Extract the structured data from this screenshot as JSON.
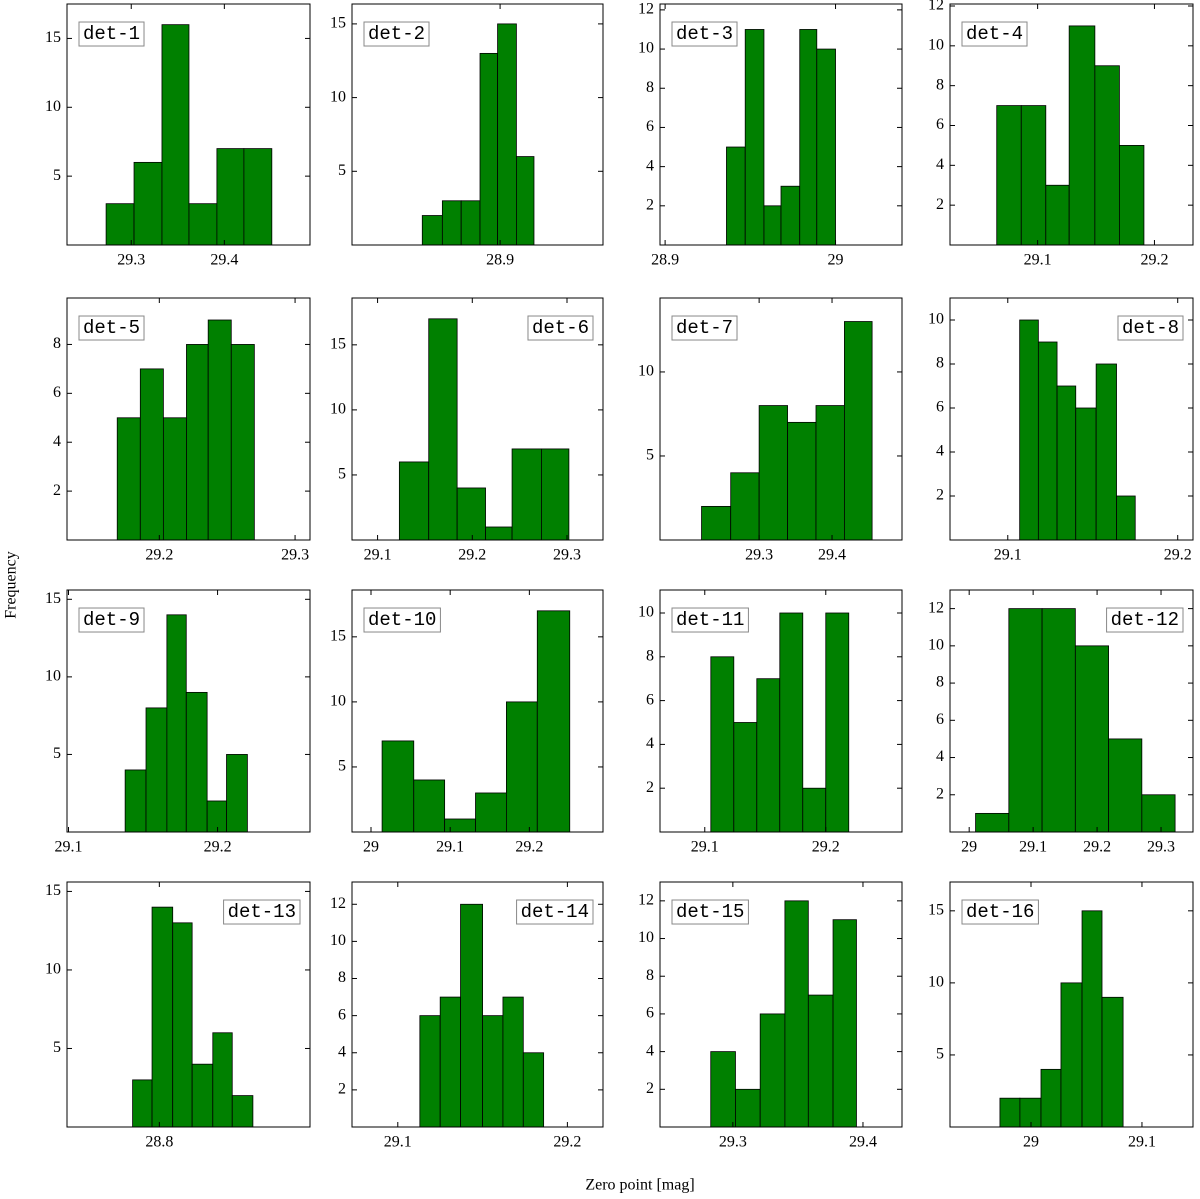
{
  "xlabel": "Zero point [mag]",
  "ylabel": "Frequency",
  "chart_data": [
    {
      "type": "histogram",
      "label": "det-1",
      "label_loc": "upper left",
      "color": "#008000",
      "bins": [
        29.273,
        29.303,
        29.333,
        29.362,
        29.392,
        29.421,
        29.451
      ],
      "counts": [
        3,
        6,
        16,
        3,
        7,
        7
      ],
      "xlim": [
        29.231,
        29.492
      ],
      "ylim": [
        0,
        17.5
      ],
      "xticks": [
        29.3,
        29.4
      ],
      "yticks": [
        5,
        10,
        15
      ]
    },
    {
      "type": "histogram",
      "label": "det-5",
      "label_loc": "upper left",
      "color": "#008000",
      "bins": [
        29.169,
        29.186,
        29.203,
        29.22,
        29.236,
        29.253,
        29.27
      ],
      "counts": [
        5,
        7,
        5,
        8,
        9,
        8
      ],
      "xlim": [
        29.132,
        29.311
      ],
      "ylim": [
        0,
        9.9
      ],
      "xticks": [
        29.2,
        29.3
      ],
      "yticks": [
        2,
        4,
        6,
        8
      ]
    },
    {
      "type": "histogram",
      "label": "det-9",
      "label_loc": "upper left",
      "color": "#008000",
      "bins": [
        29.138,
        29.152,
        29.166,
        29.179,
        29.193,
        29.206,
        29.22
      ],
      "counts": [
        4,
        8,
        14,
        9,
        2,
        5
      ],
      "xlim": [
        29.099,
        29.262
      ],
      "ylim": [
        0,
        15.6
      ],
      "xticks": [
        29.1,
        29.2
      ],
      "yticks": [
        5,
        10,
        15
      ]
    },
    {
      "type": "histogram",
      "label": "det-13",
      "label_loc": "upper right",
      "color": "#008000",
      "bins": [
        28.778,
        28.794,
        28.811,
        28.827,
        28.844,
        28.86,
        28.877
      ],
      "counts": [
        3,
        14,
        13,
        4,
        6,
        2
      ],
      "xlim": [
        28.724,
        28.924
      ],
      "ylim": [
        0,
        15.6
      ],
      "xticks": [
        28.8
      ],
      "yticks": [
        5,
        10,
        15
      ]
    },
    {
      "type": "histogram",
      "label": "det-2",
      "label_loc": "upper left",
      "color": "#008000",
      "bins": [
        28.838,
        28.854,
        28.869,
        28.884,
        28.898,
        28.913,
        28.927
      ],
      "counts": [
        2,
        3,
        3,
        13,
        15,
        6
      ],
      "xlim": [
        28.782,
        28.982
      ],
      "ylim": [
        0,
        16.35
      ],
      "xticks": [
        28.9
      ],
      "yticks": [
        5,
        10,
        15
      ]
    },
    {
      "type": "histogram",
      "label": "det-6",
      "label_loc": "upper right",
      "color": "#008000",
      "bins": [
        29.123,
        29.154,
        29.184,
        29.214,
        29.242,
        29.273,
        29.302
      ],
      "counts": [
        6,
        17,
        4,
        1,
        7,
        7
      ],
      "xlim": [
        29.073,
        29.338
      ],
      "ylim": [
        0,
        18.6
      ],
      "xticks": [
        29.1,
        29.2,
        29.3
      ],
      "yticks": [
        5,
        10,
        15
      ]
    },
    {
      "type": "histogram",
      "label": "det-10",
      "label_loc": "upper left",
      "color": "#008000",
      "bins": [
        29.014,
        29.054,
        29.093,
        29.132,
        29.171,
        29.21,
        29.251
      ],
      "counts": [
        7,
        4,
        1,
        3,
        10,
        17
      ],
      "xlim": [
        28.976,
        29.293
      ],
      "ylim": [
        0,
        18.6
      ],
      "xticks": [
        29,
        29.1,
        29.2
      ],
      "yticks": [
        5,
        10,
        15
      ]
    },
    {
      "type": "histogram",
      "label": "det-14",
      "label_loc": "upper right",
      "color": "#008000",
      "bins": [
        29.113,
        29.125,
        29.137,
        29.15,
        29.162,
        29.174,
        29.186
      ],
      "counts": [
        6,
        7,
        12,
        6,
        7,
        4
      ],
      "xlim": [
        29.073,
        29.221
      ],
      "ylim": [
        0,
        13.2
      ],
      "xticks": [
        29.1,
        29.2
      ],
      "yticks": [
        2,
        4,
        6,
        8,
        10,
        12
      ]
    },
    {
      "type": "histogram",
      "label": "det-3",
      "label_loc": "upper left",
      "color": "#008000",
      "bins": [
        28.936,
        28.947,
        28.958,
        28.968,
        28.979,
        28.989,
        29.0
      ],
      "counts": [
        5,
        11,
        2,
        3,
        11,
        10
      ],
      "xlim": [
        28.897,
        29.039
      ],
      "ylim": [
        0,
        12.3
      ],
      "xticks": [
        28.9,
        29
      ],
      "yticks": [
        2,
        4,
        6,
        8,
        10,
        12
      ]
    },
    {
      "type": "histogram",
      "label": "det-7",
      "label_loc": "upper left",
      "color": "#008000",
      "bins": [
        29.221,
        29.261,
        29.3,
        29.339,
        29.378,
        29.417,
        29.455
      ],
      "counts": [
        2,
        4,
        8,
        7,
        8,
        13
      ],
      "xlim": [
        29.164,
        29.496
      ],
      "ylim": [
        0,
        14.4
      ],
      "xticks": [
        29.3,
        29.4
      ],
      "yticks": [
        5,
        10
      ]
    },
    {
      "type": "histogram",
      "label": "det-11",
      "label_loc": "upper left",
      "color": "#008000",
      "bins": [
        29.105,
        29.124,
        29.143,
        29.162,
        29.181,
        29.2,
        29.219
      ],
      "counts": [
        8,
        5,
        7,
        10,
        2,
        10
      ],
      "xlim": [
        29.063,
        29.263
      ],
      "ylim": [
        0,
        11.05
      ],
      "xticks": [
        29.1,
        29.2
      ],
      "yticks": [
        2,
        4,
        6,
        8,
        10
      ]
    },
    {
      "type": "histogram",
      "label": "det-15",
      "label_loc": "upper left",
      "color": "#008000",
      "bins": [
        29.283,
        29.302,
        29.321,
        29.34,
        29.358,
        29.377,
        29.395
      ],
      "counts": [
        4,
        2,
        6,
        12,
        7,
        11
      ],
      "xlim": [
        29.244,
        29.43
      ],
      "ylim": [
        0,
        13
      ],
      "xticks": [
        29.3,
        29.4
      ],
      "yticks": [
        2,
        4,
        6,
        8,
        10,
        12
      ]
    },
    {
      "type": "histogram",
      "label": "det-4",
      "label_loc": "upper left",
      "color": "#008000",
      "bins": [
        29.065,
        29.086,
        29.107,
        29.127,
        29.149,
        29.17,
        29.191
      ],
      "counts": [
        7,
        7,
        3,
        11,
        9,
        5
      ],
      "xlim": [
        29.025,
        29.233
      ],
      "ylim": [
        0,
        12.1
      ],
      "xticks": [
        29.1,
        29.2
      ],
      "yticks": [
        2,
        4,
        6,
        8,
        10,
        12
      ]
    },
    {
      "type": "histogram",
      "label": "det-8",
      "label_loc": "upper right",
      "color": "#008000",
      "bins": [
        29.107,
        29.118,
        29.129,
        29.14,
        29.152,
        29.164,
        29.175
      ],
      "counts": [
        10,
        9,
        7,
        6,
        8,
        2
      ],
      "xlim": [
        29.066,
        29.209
      ],
      "ylim": [
        0,
        11
      ],
      "xticks": [
        29.1,
        29.2
      ],
      "yticks": [
        2,
        4,
        6,
        8,
        10
      ]
    },
    {
      "type": "histogram",
      "label": "det-12",
      "label_loc": "upper right",
      "color": "#008000",
      "bins": [
        29.01,
        29.062,
        29.114,
        29.166,
        29.218,
        29.27,
        29.322
      ],
      "counts": [
        1,
        12,
        12,
        10,
        5,
        2
      ],
      "xlim": [
        28.97,
        29.35
      ],
      "ylim": [
        0,
        13
      ],
      "xticks": [
        29,
        29.1,
        29.2,
        29.3
      ],
      "yticks": [
        2,
        4,
        6,
        8,
        10,
        12
      ]
    },
    {
      "type": "histogram",
      "label": "det-16",
      "label_loc": "upper left",
      "color": "#008000",
      "bins": [
        28.972,
        28.99,
        29.009,
        29.027,
        29.046,
        29.064,
        29.083
      ],
      "counts": [
        2,
        2,
        4,
        10,
        15,
        9
      ],
      "xlim": [
        28.927,
        29.146
      ],
      "ylim": [
        0,
        17
      ],
      "xticks": [
        29,
        29.1
      ],
      "yticks": [
        5,
        10,
        15
      ]
    }
  ]
}
